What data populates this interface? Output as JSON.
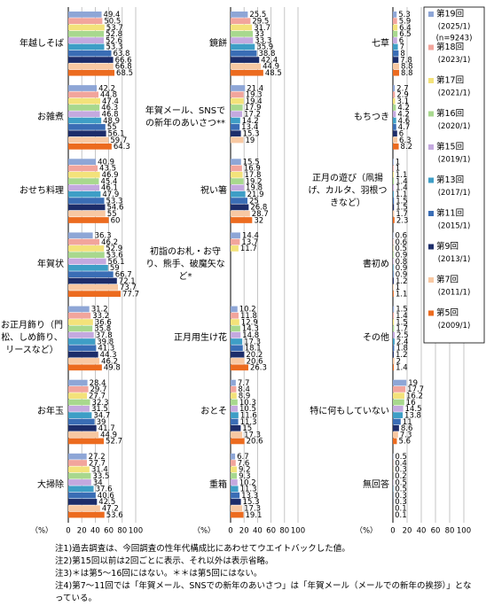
{
  "chart_data": [
    {
      "type": "bar",
      "orientation": "horizontal",
      "unit_label": "（%）",
      "categories": [
        "年越しそば",
        "お雑煮",
        "おせち料理",
        "年賀状",
        "お正月飾り（門松、しめ飾り、リースなど）",
        "お年玉",
        "大掃除"
      ],
      "series": [
        {
          "values": [
            49.4,
            42.2,
            40.9,
            36.3,
            31.2,
            28.4,
            27.2
          ]
        },
        {
          "values": [
            50.5,
            44.8,
            43.5,
            46.2,
            33.2,
            29.7,
            27.7
          ]
        },
        {
          "values": [
            53.7,
            47.4,
            46.9,
            52.9,
            36.6,
            27.7,
            31.4
          ]
        },
        {
          "values": [
            52.8,
            46.3,
            45.4,
            53.6,
            35.8,
            32.3,
            33.5
          ]
        },
        {
          "values": [
            52.6,
            46.8,
            46.1,
            56.1,
            37.8,
            31.5,
            34.0
          ]
        },
        {
          "values": [
            53.3,
            48.9,
            47.9,
            59.0,
            39.8,
            34.7,
            37.6
          ]
        },
        {
          "values": [
            63.8,
            55.0,
            53.3,
            66.7,
            41.3,
            39.0,
            40.6
          ]
        },
        {
          "values": [
            66.6,
            56.1,
            54.6,
            72.1,
            44.3,
            41.7,
            42.5
          ]
        },
        {
          "values": [
            66.8,
            59.7,
            55.0,
            73.7,
            46.2,
            44.9,
            47.2
          ]
        },
        {
          "values": [
            68.5,
            64.3,
            60.0,
            77.7,
            49.8,
            52.7,
            53.6
          ]
        }
      ],
      "xlim": [
        0,
        100
      ],
      "xticks": [
        0,
        20,
        40,
        60,
        80,
        100
      ],
      "grid": true
    },
    {
      "type": "bar",
      "orientation": "horizontal",
      "unit_label": "（%）",
      "categories": [
        "鏡餅",
        "年賀メール、SNSでの新年のあいさつ**",
        "祝い箸",
        "初詣のお札・お守り、熊手、破魔矢など*",
        "正月用生け花",
        "おとそ",
        "重箱"
      ],
      "series": [
        {
          "values": [
            25.5,
            21.4,
            15.5,
            14.4,
            10.2,
            7.7,
            6.7
          ]
        },
        {
          "values": [
            29.5,
            19.3,
            16.9,
            13.7,
            11.8,
            8.4,
            7.6
          ]
        },
        {
          "values": [
            31.7,
            19.4,
            17.8,
            11.7,
            12.9,
            8.9,
            9.2
          ]
        },
        {
          "values": [
            33.0,
            17.9,
            19.2,
            null,
            14.3,
            10.3,
            9.3
          ]
        },
        {
          "values": [
            33.3,
            17.2,
            19.8,
            null,
            14.8,
            10.5,
            10.2
          ]
        },
        {
          "values": [
            35.9,
            14.2,
            21.9,
            null,
            17.3,
            11.6,
            11.3
          ]
        },
        {
          "values": [
            38.8,
            13.4,
            25.0,
            null,
            18.1,
            11.3,
            13.3
          ]
        },
        {
          "values": [
            42.4,
            15.3,
            26.8,
            null,
            20.2,
            15.0,
            15.3
          ]
        },
        {
          "values": [
            44.9,
            19.0,
            28.7,
            null,
            20.6,
            17.3,
            17.3
          ]
        },
        {
          "values": [
            48.5,
            null,
            32.0,
            null,
            26.3,
            20.6,
            19.1
          ]
        }
      ],
      "xlim": [
        0,
        100
      ],
      "xticks": [
        0,
        20,
        40,
        60,
        80,
        100
      ],
      "grid": true
    },
    {
      "type": "bar",
      "orientation": "horizontal",
      "unit_label": "（%）",
      "categories": [
        "七草",
        "もちつき",
        "正月の遊び（凧揚げ、カルタ、羽根つきなど）",
        "書初め",
        "その他",
        "特に何もしていない",
        "無回答"
      ],
      "series": [
        {
          "values": [
            5.3,
            2.7,
            1.0,
            0.6,
            1.5,
            19.0,
            0.5
          ]
        },
        {
          "values": [
            5.9,
            2.9,
            1.0,
            0.6,
            1.4,
            17.7,
            0.4
          ]
        },
        {
          "values": [
            6.4,
            3.1,
            1.1,
            0.5,
            1.5,
            16.2,
            0.3
          ]
        },
        {
          "values": [
            6.5,
            4.2,
            1.4,
            0.9,
            1.7,
            16.0,
            0.2
          ]
        },
        {
          "values": [
            6.0,
            4.2,
            1.4,
            0.8,
            2.5,
            14.5,
            0.5
          ]
        },
        {
          "values": [
            7.0,
            4.6,
            1.1,
            0.9,
            2.4,
            13.8,
            0.5
          ]
        },
        {
          "values": [
            8.0,
            4.7,
            1.5,
            0.9,
            1.8,
            11.0,
            0.3
          ]
        },
        {
          "values": [
            7.8,
            6.0,
            1.5,
            1.2,
            1.2,
            8.6,
            0.3
          ]
        },
        {
          "values": [
            8.8,
            6.3,
            1.7,
            1.0,
            2.0,
            7.3,
            0.1
          ]
        },
        {
          "values": [
            8.8,
            8.2,
            2.3,
            1.1,
            1.4,
            5.6,
            0.1
          ]
        }
      ],
      "xlim": [
        0,
        100
      ],
      "xticks": [
        0,
        20,
        40,
        60,
        80,
        100
      ],
      "grid": true
    }
  ],
  "legend": {
    "note": "(n=9243)",
    "items": [
      {
        "name": "第19回",
        "period": "(2025/1)",
        "color": "#8ea6d6"
      },
      {
        "name": "第18回",
        "period": "(2023/1)",
        "color": "#f2a59c"
      },
      {
        "name": "第17回",
        "period": "(2021/1)",
        "color": "#f3e27a"
      },
      {
        "name": "第16回",
        "period": "(2020/1)",
        "color": "#a8d88e"
      },
      {
        "name": "第15回",
        "period": "(2019/1)",
        "color": "#c4a9df"
      },
      {
        "name": "第13回",
        "period": "(2017/1)",
        "color": "#3e9ec6"
      },
      {
        "name": "第11回",
        "period": "(2015/1)",
        "color": "#3a6db5"
      },
      {
        "name": "第9回",
        "period": "(2013/1)",
        "color": "#1d2d6a"
      },
      {
        "name": "第7回",
        "period": "(2011/1)",
        "color": "#f8c8a2"
      },
      {
        "name": "第5回",
        "period": "(2009/1)",
        "color": "#ec6b1f"
      }
    ]
  },
  "notes": [
    "注1)過去調査は、今回調査の性年代構成比にあわせてウエイトバックした値。",
    "注2)第15回以前は2回ごとに表示、それ以外は表示省略。",
    "注3)＊は第5～16回にはない。＊＊は第5回にはない。",
    "注4)第7～11回では「年賀メール、SNSでの新年のあいさつ」は「年賀メール（メールでの新年の挨拶）」となっている。"
  ]
}
